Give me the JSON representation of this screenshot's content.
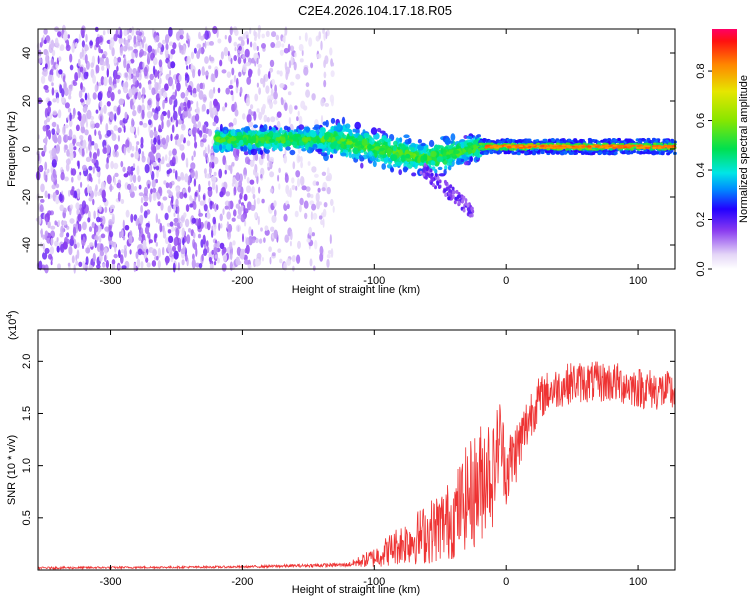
{
  "title": "C2E4.2026.104.17.18.R05",
  "chart_data": [
    {
      "type": "heatmap",
      "name": "spectrogram",
      "xlabel": "Height of straight line (km)",
      "ylabel": "Frequency (Hz)",
      "xlim": [
        -355,
        128
      ],
      "ylim": [
        -50,
        50
      ],
      "xticks": [
        -300,
        -200,
        -100,
        0,
        100
      ],
      "yticks": [
        -40,
        -20,
        0,
        20,
        40
      ],
      "colorbar": {
        "label": "Normalized spectral amplitude",
        "range": [
          0.0,
          0.97
        ],
        "ticks": [
          0.0,
          0.2,
          0.4,
          0.6,
          0.8
        ]
      },
      "regions": [
        {
          "name": "noise",
          "x_range": [
            -355,
            -130
          ],
          "freq_range": [
            -50,
            50
          ],
          "amplitude": 0.1
        },
        {
          "name": "scattered signal",
          "x_range": [
            -220,
            -20
          ],
          "freq_range": [
            -20,
            10
          ],
          "amplitude": 0.35
        },
        {
          "name": "stable carrier",
          "x_range": [
            -20,
            128
          ],
          "freq_center": 1,
          "amplitude": 0.9
        }
      ]
    },
    {
      "type": "line",
      "name": "snr",
      "xlabel": "Height of straight line (km)",
      "ylabel": "SNR (10 * v/v)",
      "yunit_multiplier": "(x10",
      "yunit_exponent": "4",
      "yunit_close": ")",
      "xlim": [
        -355,
        128
      ],
      "ylim": [
        0,
        2.3
      ],
      "xticks": [
        -300,
        -200,
        -100,
        0,
        100
      ],
      "yticks": [
        0.5,
        1.0,
        1.5,
        2.0
      ],
      "ytick_labels": [
        "0.5",
        "1.0",
        "1.5",
        "2.0"
      ],
      "color": "#ee3333",
      "envelope": {
        "x": [
          -355,
          -200,
          -120,
          -100,
          -80,
          -60,
          -40,
          -30,
          -20,
          -15,
          -10,
          -5,
          0,
          10,
          20,
          30,
          50,
          80,
          100,
          128
        ],
        "mean": [
          0.02,
          0.03,
          0.05,
          0.12,
          0.25,
          0.35,
          0.5,
          0.7,
          0.8,
          1.0,
          0.9,
          1.3,
          0.95,
          1.2,
          1.55,
          1.7,
          1.8,
          1.8,
          1.75,
          1.7
        ],
        "spread": [
          0.01,
          0.01,
          0.02,
          0.1,
          0.2,
          0.3,
          0.4,
          0.5,
          0.6,
          0.6,
          0.5,
          0.4,
          0.35,
          0.3,
          0.25,
          0.2,
          0.2,
          0.2,
          0.2,
          0.2
        ]
      }
    }
  ]
}
